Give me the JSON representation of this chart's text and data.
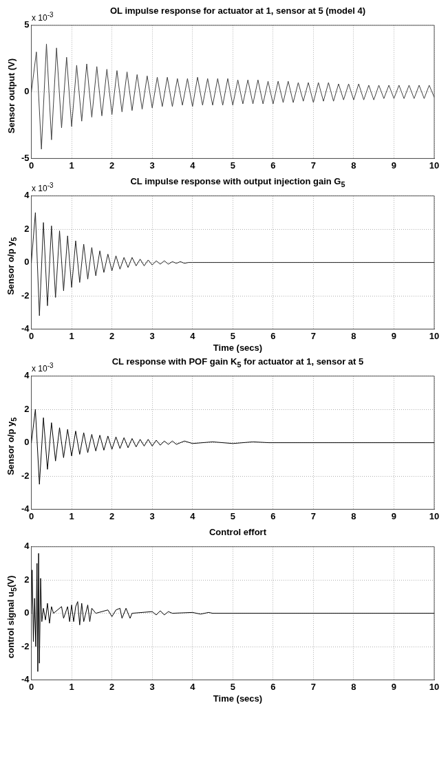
{
  "chart_data": [
    {
      "type": "line",
      "title": "OL impulse response for actuator at 1, sensor at 5 (model 4)",
      "ylabel": "Sensor output (V)",
      "annotations": [
        "x 10$^{-3}$"
      ],
      "xlim": [
        0,
        10
      ],
      "xticks": [
        0,
        1,
        2,
        3,
        4,
        5,
        6,
        7,
        8,
        9,
        10
      ],
      "ylim": [
        -5,
        5
      ],
      "yticks": [
        -5,
        0,
        5
      ],
      "grid": true,
      "x": [
        0,
        0.125,
        0.25,
        0.375,
        0.5,
        0.625,
        0.75,
        0.875,
        1,
        1.125,
        1.25,
        1.375,
        1.5,
        1.625,
        1.75,
        1.875,
        2,
        2.125,
        2.25,
        2.375,
        2.5,
        2.625,
        2.75,
        2.875,
        3,
        3.125,
        3.25,
        3.375,
        3.5,
        3.625,
        3.75,
        3.875,
        4,
        4.125,
        4.25,
        4.375,
        4.5,
        4.625,
        4.75,
        4.875,
        5,
        5.125,
        5.25,
        5.375,
        5.5,
        5.625,
        5.75,
        5.875,
        6,
        6.125,
        6.25,
        6.375,
        6.5,
        6.625,
        6.75,
        6.875,
        7,
        7.125,
        7.25,
        7.375,
        7.5,
        7.625,
        7.75,
        7.875,
        8,
        8.125,
        8.25,
        8.375,
        8.5,
        8.625,
        8.75,
        8.875,
        9,
        9.125,
        9.25,
        9.375,
        9.5,
        9.625,
        9.75,
        9.875,
        10
      ],
      "series": [
        {
          "color": "#404040",
          "values": [
            0,
            3.0,
            -4.3,
            3.6,
            -3.6,
            3.3,
            -2.7,
            2.6,
            -2.6,
            2.0,
            -2.2,
            2.1,
            -1.9,
            1.9,
            -1.8,
            1.7,
            -1.7,
            1.6,
            -1.5,
            1.5,
            -1.4,
            1.3,
            -1.3,
            1.2,
            -1.2,
            1.1,
            -1.1,
            1.1,
            -1.1,
            1.0,
            -1.0,
            1.0,
            -1.1,
            1.1,
            -1.0,
            1.0,
            -1.0,
            1.0,
            -1.0,
            1.0,
            -1.0,
            0.9,
            -0.9,
            0.9,
            -0.9,
            0.9,
            -0.9,
            0.8,
            -0.9,
            0.8,
            -0.8,
            0.8,
            -0.8,
            0.7,
            -0.7,
            0.7,
            -0.8,
            0.7,
            -0.7,
            0.7,
            -0.7,
            0.6,
            -0.6,
            0.6,
            -0.6,
            0.6,
            -0.6,
            0.5,
            -0.6,
            0.5,
            -0.5,
            0.5,
            -0.5,
            0.5,
            -0.5,
            0.5,
            -0.5,
            0.5,
            -0.5,
            0.5,
            -0.4
          ]
        }
      ]
    },
    {
      "type": "line",
      "title": "CL impulse response with output injection gain G$_{5}$",
      "xlabel": "Time (secs)",
      "ylabel": "Sensor o/p y$_{5}$",
      "annotations": [
        "x 10$^{-3}$"
      ],
      "xlim": [
        0,
        10
      ],
      "xticks": [
        0,
        1,
        2,
        3,
        4,
        5,
        6,
        7,
        8,
        9,
        10
      ],
      "ylim": [
        -4,
        4
      ],
      "yticks": [
        -4,
        -2,
        0,
        2,
        4
      ],
      "grid": true,
      "x": [
        0,
        0.1,
        0.2,
        0.3,
        0.4,
        0.5,
        0.6,
        0.7,
        0.8,
        0.9,
        1.0,
        1.1,
        1.2,
        1.3,
        1.4,
        1.5,
        1.6,
        1.7,
        1.8,
        1.9,
        2.0,
        2.1,
        2.2,
        2.3,
        2.4,
        2.5,
        2.6,
        2.7,
        2.8,
        2.9,
        3.0,
        3.1,
        3.2,
        3.3,
        3.4,
        3.5,
        3.6,
        3.7,
        3.8,
        3.9,
        4.0,
        5,
        6,
        7,
        8,
        9,
        10
      ],
      "series": [
        {
          "color": "#202020",
          "values": [
            0,
            3.0,
            -3.2,
            2.4,
            -2.6,
            2.2,
            -2.1,
            1.9,
            -1.7,
            1.6,
            -1.5,
            1.3,
            -1.2,
            1.1,
            -1.0,
            0.9,
            -0.8,
            0.7,
            -0.6,
            0.5,
            -0.5,
            0.4,
            -0.4,
            0.3,
            -0.3,
            0.3,
            -0.2,
            0.2,
            -0.2,
            0.15,
            -0.15,
            0.1,
            -0.1,
            0.1,
            -0.1,
            0.05,
            -0.05,
            0.05,
            -0.05,
            0,
            0,
            0,
            0,
            0,
            0,
            0,
            0
          ]
        }
      ]
    },
    {
      "type": "line",
      "title": "CL response with POF gain K$_{5}$ for actuator at 1, sensor at 5",
      "ylabel": "Sensor o/p y$_{5}$",
      "annotations": [
        "x 10$^{-3}$"
      ],
      "xlim": [
        0,
        10
      ],
      "xticks": [
        0,
        1,
        2,
        3,
        4,
        5,
        6,
        7,
        8,
        9,
        10
      ],
      "ylim": [
        -4,
        4
      ],
      "yticks": [
        -4,
        -2,
        0,
        2,
        4
      ],
      "grid": true,
      "x": [
        0,
        0.1,
        0.2,
        0.3,
        0.4,
        0.5,
        0.6,
        0.7,
        0.8,
        0.9,
        1.0,
        1.1,
        1.2,
        1.3,
        1.4,
        1.5,
        1.6,
        1.7,
        1.8,
        1.9,
        2.0,
        2.1,
        2.2,
        2.3,
        2.4,
        2.5,
        2.6,
        2.7,
        2.8,
        2.9,
        3.0,
        3.1,
        3.2,
        3.3,
        3.4,
        3.5,
        3.6,
        3.8,
        4.0,
        4.5,
        5.0,
        5.5,
        5.9,
        10
      ],
      "series": [
        {
          "color": "#000000",
          "values": [
            0,
            2.0,
            -2.5,
            1.5,
            -1.6,
            1.2,
            -1.1,
            0.9,
            -0.9,
            0.8,
            -0.8,
            0.7,
            -0.7,
            0.6,
            -0.6,
            0.5,
            -0.5,
            0.45,
            -0.45,
            0.4,
            -0.4,
            0.35,
            -0.35,
            0.3,
            -0.3,
            0.25,
            -0.25,
            0.2,
            -0.2,
            0.2,
            -0.2,
            0.15,
            -0.15,
            0.1,
            -0.1,
            0.1,
            -0.1,
            0.1,
            -0.05,
            0.05,
            -0.05,
            0.05,
            0,
            0
          ]
        }
      ]
    },
    {
      "type": "line",
      "title": "Control effort",
      "xlabel": "Time (secs)",
      "ylabel": "control signal u$_{5}$(V)",
      "xlim": [
        0,
        10
      ],
      "xticks": [
        0,
        1,
        2,
        3,
        4,
        5,
        6,
        7,
        8,
        9,
        10
      ],
      "ylim": [
        -4,
        4
      ],
      "yticks": [
        -4,
        -2,
        0,
        2,
        4
      ],
      "grid": true,
      "x": [
        0,
        0.02,
        0.05,
        0.08,
        0.11,
        0.14,
        0.16,
        0.18,
        0.2,
        0.23,
        0.26,
        0.3,
        0.35,
        0.4,
        0.45,
        0.5,
        0.55,
        0.75,
        0.8,
        0.9,
        0.95,
        1.0,
        1.05,
        1.1,
        1.15,
        1.2,
        1.25,
        1.3,
        1.4,
        1.45,
        1.5,
        1.6,
        1.9,
        2.0,
        2.1,
        2.2,
        2.25,
        2.35,
        2.45,
        2.5,
        3.0,
        3.1,
        3.2,
        3.3,
        3.4,
        3.5,
        4.0,
        4.2,
        4.4,
        4.5,
        10
      ],
      "series": [
        {
          "color": "#000000",
          "values": [
            0,
            2.6,
            -1.7,
            0.9,
            -2.0,
            3.0,
            -3.5,
            3.6,
            -3.0,
            2.1,
            -0.5,
            0.3,
            -0.4,
            0.6,
            -0.6,
            0.4,
            0,
            0.4,
            -0.3,
            0.4,
            -0.5,
            0.5,
            -0.5,
            0.4,
            0.7,
            -0.7,
            0.6,
            -0.5,
            0.5,
            -0.5,
            0.3,
            0,
            0.2,
            -0.2,
            0.2,
            0.3,
            -0.3,
            0.3,
            -0.3,
            0,
            0.1,
            -0.1,
            0.15,
            -0.1,
            0.1,
            0,
            0.05,
            -0.05,
            0.05,
            0,
            0
          ]
        }
      ]
    }
  ]
}
